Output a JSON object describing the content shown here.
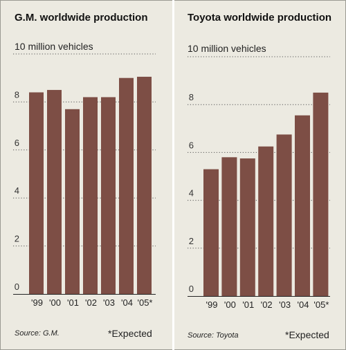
{
  "chart_data": [
    {
      "type": "bar",
      "title": "G.M. worldwide production",
      "unit_label": "10 million vehicles",
      "categories": [
        "'99",
        "'00",
        "'01",
        "'02",
        "'03",
        "'04",
        "'05*"
      ],
      "values": [
        8.4,
        8.5,
        7.7,
        8.2,
        8.2,
        9.0,
        9.05
      ],
      "ylim": [
        0,
        10
      ],
      "yticks": [
        "0",
        "2",
        "4",
        "6",
        "8"
      ],
      "grid": "dotted horizontal",
      "bar_color": "#7d4e45",
      "source": "Source: G.M.",
      "note": "*Expected"
    },
    {
      "type": "bar",
      "title": "Toyota worldwide production",
      "unit_label": "10 million vehicles",
      "categories": [
        "'99",
        "'00",
        "'01",
        "'02",
        "'03",
        "'04",
        "'05*"
      ],
      "values": [
        5.3,
        5.8,
        5.75,
        6.25,
        6.75,
        7.55,
        8.5
      ],
      "ylim": [
        0,
        10
      ],
      "yticks": [
        "0",
        "2",
        "4",
        "6",
        "8"
      ],
      "grid": "dotted horizontal",
      "bar_color": "#7d4e45",
      "source": "Source: Toyota",
      "note": "*Expected"
    }
  ],
  "colors": {
    "background": "#eceae1",
    "bar": "#7d4e45",
    "divider": "#ffffff"
  }
}
